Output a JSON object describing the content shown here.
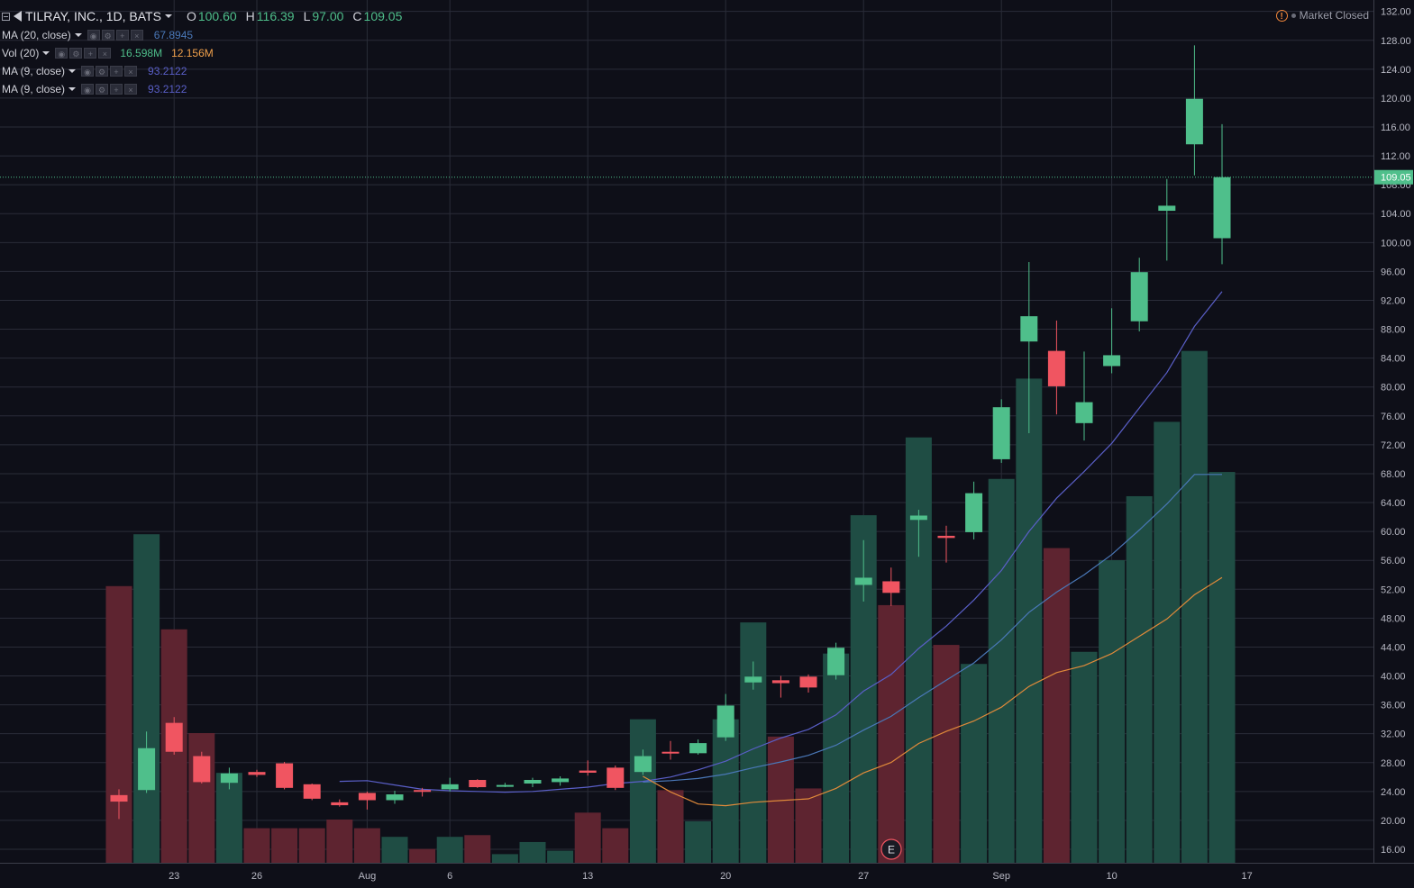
{
  "header": {
    "symbol_label": "TILRAY, INC., 1D, BATS",
    "ohlc": [
      {
        "key": "O",
        "value": "100.60"
      },
      {
        "key": "H",
        "value": "116.39"
      },
      {
        "key": "L",
        "value": "97.00"
      },
      {
        "key": "C",
        "value": "109.05"
      }
    ]
  },
  "indicators": [
    {
      "name": "MA (20, close)",
      "value": "67.8945",
      "color": "#4a78b8"
    },
    {
      "name": "Vol (20)",
      "value": "16.598M",
      "value2": "12.156M",
      "color": "#4fbf8b",
      "color2": "#f0a04b"
    },
    {
      "name": "MA (9, close)",
      "value": "93.2122",
      "color": "#5a5fc8"
    },
    {
      "name": "MA (9, close)",
      "value": "93.2122",
      "color": "#5a5fc8"
    }
  ],
  "status": {
    "market_label": "Market Closed"
  },
  "earnings_marker": "E",
  "colors": {
    "up": "#4fbf8b",
    "down": "#f05561",
    "vol_up": "#1f4d44",
    "vol_down": "#5e2430",
    "background": "#0e0f18"
  },
  "chart_data": {
    "type": "candlestick",
    "y_ticks": [
      "132.00",
      "128.00",
      "124.00",
      "120.00",
      "116.00",
      "112.00",
      "108.00",
      "104.00",
      "100.00",
      "96.00",
      "92.00",
      "88.00",
      "84.00",
      "80.00",
      "76.00",
      "72.00",
      "68.00",
      "64.00",
      "60.00",
      "56.00",
      "52.00",
      "48.00",
      "44.00",
      "40.00",
      "36.00",
      "32.00",
      "28.00",
      "24.00",
      "20.00",
      "16.00"
    ],
    "x_labels": [
      "23",
      "26",
      "Aug",
      "6",
      "13",
      "20",
      "27",
      "Sep",
      "10",
      "17"
    ],
    "last_price": "109.05",
    "candles": [
      {
        "o": 23.5,
        "h": 24.3,
        "l": 20.2,
        "c": 22.6,
        "v": 30
      },
      {
        "o": 24.2,
        "h": 32.3,
        "l": 23.8,
        "c": 30.0,
        "v": 33
      },
      {
        "o": 33.5,
        "h": 34.3,
        "l": 29.1,
        "c": 29.5,
        "v": 27.5
      },
      {
        "o": 28.9,
        "h": 29.5,
        "l": 25.1,
        "c": 25.3,
        "v": 21.5
      },
      {
        "o": 25.2,
        "h": 27.3,
        "l": 24.3,
        "c": 26.5,
        "v": 19.2
      },
      {
        "o": 26.7,
        "h": 27.0,
        "l": 26.0,
        "c": 26.3,
        "v": 16
      },
      {
        "o": 27.9,
        "h": 28.1,
        "l": 24.3,
        "c": 24.5,
        "v": 16
      },
      {
        "o": 25.0,
        "h": 25.1,
        "l": 22.8,
        "c": 23.0,
        "v": 16
      },
      {
        "o": 22.5,
        "h": 22.9,
        "l": 21.9,
        "c": 22.1,
        "v": 16.5
      },
      {
        "o": 23.8,
        "h": 24.0,
        "l": 21.5,
        "c": 22.8,
        "v": 16
      },
      {
        "o": 22.8,
        "h": 24.1,
        "l": 22.3,
        "c": 23.6,
        "v": 15.5
      },
      {
        "o": 24.2,
        "h": 24.5,
        "l": 23.3,
        "c": 24.0,
        "v": 14.8
      },
      {
        "o": 24.3,
        "h": 25.9,
        "l": 24.0,
        "c": 25.0,
        "v": 15.5
      },
      {
        "o": 25.6,
        "h": 25.7,
        "l": 24.5,
        "c": 24.6,
        "v": 15.6
      },
      {
        "o": 24.7,
        "h": 25.2,
        "l": 24.6,
        "c": 24.9,
        "v": 14.5
      },
      {
        "o": 25.1,
        "h": 25.9,
        "l": 24.6,
        "c": 25.6,
        "v": 15.2
      },
      {
        "o": 25.3,
        "h": 26.1,
        "l": 24.8,
        "c": 25.8,
        "v": 14.7
      },
      {
        "o": 26.9,
        "h": 28.3,
        "l": 26.2,
        "c": 26.6,
        "v": 16.9
      },
      {
        "o": 27.3,
        "h": 27.6,
        "l": 24.2,
        "c": 24.5,
        "v": 16
      },
      {
        "o": 26.7,
        "h": 29.8,
        "l": 26.3,
        "c": 28.9,
        "v": 22.3
      },
      {
        "o": 29.5,
        "h": 31.0,
        "l": 28.4,
        "c": 29.3,
        "v": 18.2
      },
      {
        "o": 29.3,
        "h": 31.2,
        "l": 29.1,
        "c": 30.7,
        "v": 16.4
      },
      {
        "o": 31.5,
        "h": 37.5,
        "l": 31.0,
        "c": 35.9,
        "v": 22.3
      },
      {
        "o": 39.1,
        "h": 42.0,
        "l": 38.1,
        "c": 39.9,
        "v": 27.9
      },
      {
        "o": 39.4,
        "h": 40.0,
        "l": 37.0,
        "c": 39.0,
        "v": 21.3
      },
      {
        "o": 39.9,
        "h": 40.2,
        "l": 37.7,
        "c": 38.4,
        "v": 18.3
      },
      {
        "o": 40.1,
        "h": 44.6,
        "l": 39.5,
        "c": 43.9,
        "v": 26.1
      },
      {
        "o": 52.6,
        "h": 58.8,
        "l": 50.3,
        "c": 53.6,
        "v": 34.1
      },
      {
        "o": 53.1,
        "h": 55.0,
        "l": 49.7,
        "c": 51.5,
        "v": 28.9
      },
      {
        "o": 61.6,
        "h": 63.0,
        "l": 56.5,
        "c": 62.2,
        "v": 38.6
      },
      {
        "o": 59.4,
        "h": 60.8,
        "l": 55.7,
        "c": 59.1,
        "v": 26.6
      },
      {
        "o": 59.9,
        "h": 66.9,
        "l": 58.9,
        "c": 65.3,
        "v": 25.5
      },
      {
        "o": 70.0,
        "h": 78.3,
        "l": 69.5,
        "c": 77.2,
        "v": 36.2
      },
      {
        "o": 86.3,
        "h": 97.3,
        "l": 73.6,
        "c": 89.8,
        "v": 42
      },
      {
        "o": 85.0,
        "h": 89.2,
        "l": 76.2,
        "c": 80.1,
        "v": 32.2
      },
      {
        "o": 75.0,
        "h": 84.9,
        "l": 72.6,
        "c": 77.9,
        "v": 26.2
      },
      {
        "o": 82.9,
        "h": 90.9,
        "l": 81.9,
        "c": 84.4,
        "v": 31.5
      },
      {
        "o": 89.1,
        "h": 97.9,
        "l": 87.7,
        "c": 95.9,
        "v": 35.2
      },
      {
        "o": 104.4,
        "h": 108.8,
        "l": 97.5,
        "c": 105.1,
        "v": 39.5
      },
      {
        "o": 113.6,
        "h": 127.3,
        "l": 109.3,
        "c": 119.9,
        "v": 43.6
      },
      {
        "o": 100.6,
        "h": 116.39,
        "l": 97.0,
        "c": 109.05,
        "v": 36.6
      }
    ],
    "ma_lines": [
      {
        "name": "MA (20, close)",
        "values": [
          null,
          null,
          null,
          null,
          null,
          null,
          null,
          null,
          null,
          null,
          null,
          null,
          null,
          null,
          null,
          null,
          null,
          null,
          null,
          25.3,
          25.5,
          25.8,
          26.4,
          27.3,
          28.1,
          29.0,
          30.4,
          32.5,
          34.4,
          37.0,
          39.4,
          41.8,
          45.0,
          48.8,
          51.6,
          54.0,
          56.8,
          60.2,
          63.8,
          67.9,
          67.8945
        ]
      },
      {
        "name": "MA (9, close)",
        "values": [
          null,
          null,
          null,
          null,
          null,
          null,
          null,
          null,
          25.4,
          25.5,
          24.9,
          24.3,
          24.1,
          24.0,
          23.9,
          24.0,
          24.3,
          24.6,
          25.1,
          25.4,
          26.0,
          27.0,
          28.2,
          29.9,
          31.4,
          32.6,
          34.6,
          37.9,
          40.2,
          43.8,
          46.9,
          50.5,
          54.6,
          60.0,
          64.6,
          68.3,
          72.2,
          77.1,
          82.0,
          88.4,
          93.2122
        ]
      },
      {
        "name": "Vol MA (20)",
        "values": [
          null,
          null,
          null,
          null,
          null,
          null,
          null,
          null,
          null,
          null,
          null,
          null,
          null,
          null,
          null,
          null,
          null,
          null,
          null,
          19.0,
          18.1,
          17.4,
          17.3,
          17.5,
          17.6,
          17.7,
          18.3,
          19.2,
          19.8,
          20.9,
          21.6,
          22.2,
          23.0,
          24.2,
          25.0,
          25.4,
          26.1,
          27.1,
          28.1,
          29.5,
          30.5
        ]
      }
    ]
  }
}
